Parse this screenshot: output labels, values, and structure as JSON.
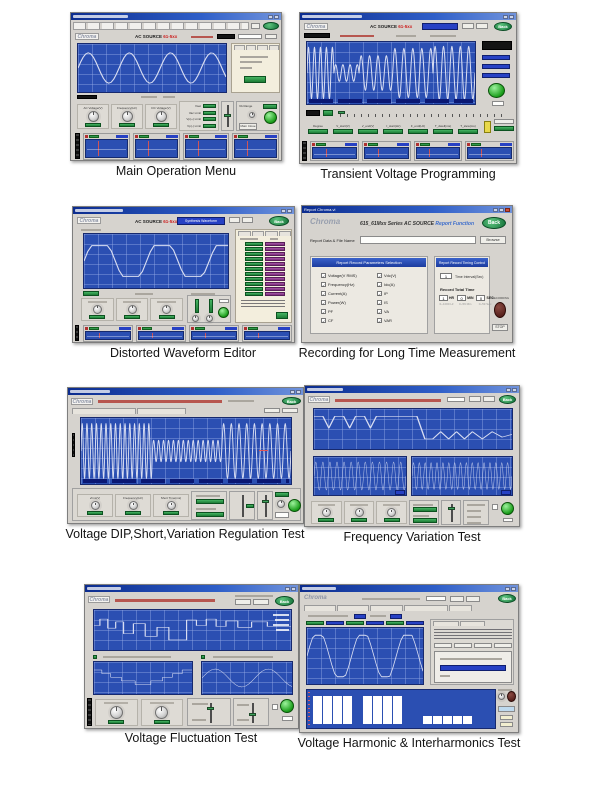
{
  "shared": {
    "logo": "Chroma",
    "back_label": "Back",
    "ac_source": "AC SOURCE",
    "model_accent": "61-5xx"
  },
  "colors": {
    "plot_blue": "#2b4fb2",
    "display_green": "#2d9a4d",
    "back_green": "#1f8a44",
    "accent_red": "#cc2020",
    "harmonic_purple": "#8e3a8e",
    "maroon_led": "#5c2020",
    "window_gray": "#d6d3ce",
    "titlebar_blue": "#0c2c8e"
  },
  "captions": {
    "p1": "Main Operation Menu",
    "p2": "Transient Voltage Programming",
    "p3": "Distorted Waveform Editor",
    "p4": "Recording for Long Time Measurement",
    "p5": "Voltage DIP,Short,Variation Regulation Test",
    "p6": "Frequency Variation Test",
    "p7": "Voltage Fluctuation Test",
    "p8": "Voltage Harmonic & Interharmonics Test"
  },
  "panels": {
    "p1": {
      "knobs": [
        "AC Voltage(V)",
        "Frequency(Hz)",
        "DC Voltage(V)"
      ],
      "meas": [
        "Vset",
        "Vac Limit",
        "Vp(+) Limit",
        "Vp(-) Limit"
      ],
      "range_label": "VA Range",
      "main_close": "Main Close"
    },
    "p2": {
      "params": [
        "Degree",
        "V_start(V)",
        "V_end(V)",
        "F_start(Hz)",
        "F_end(Hz)",
        "T_dwell(ms)",
        "T_slew(ms)"
      ]
    },
    "p3": {
      "synthesis_button": "Synthesis Waveform",
      "rows": [
        1,
        2,
        3,
        4,
        5,
        6,
        7,
        8,
        9,
        10,
        11
      ],
      "knobs": [
        "",
        "",
        ""
      ]
    },
    "p4": {
      "window_title": "Report Chroma.vi",
      "series_title": "615_61Mxx Series AC SOURCE",
      "report_function": "Report Function",
      "file_label": "Report Data & File Name",
      "browse": "Browse",
      "params_header": "Report Record Parameters Selection",
      "timing_header": "Report Record Timing Control",
      "params_left": [
        "Voltage(V RMS)",
        "Frequency(Hz)",
        "Current(A)",
        "Power(W)",
        "PF",
        "CF"
      ],
      "params_right": [
        "Vdc(V)",
        "Idc(A)",
        "IP",
        "IS",
        "VA",
        "VAR"
      ],
      "interval_value": "1",
      "interval_label": "Time Interval(Sec)",
      "total_label": "Record Total Time",
      "time_fields": [
        {
          "v": "1",
          "u": "HR",
          "h": "0~1000 Hr"
        },
        {
          "v": "0",
          "u": "MIN",
          "h": "0~59 Min"
        },
        {
          "v": "0",
          "u": "SEC",
          "h": "0~59 Sec"
        }
      ],
      "recording_label": "RECORDING",
      "stop": "STOP"
    },
    "p5": {
      "knobs": [
        "Vrms(V)",
        "Frequency(Hz)",
        "Short Time(ms)"
      ]
    },
    "p6": {
      "knobs": [
        "",
        "",
        ""
      ]
    },
    "p7": {
      "knobs": [
        "",
        ""
      ]
    },
    "p8": {
      "bars": [
        90,
        90,
        90,
        90,
        0,
        90,
        90,
        90,
        90,
        0,
        0,
        25,
        25,
        25,
        25,
        25,
        0,
        0
      ]
    }
  },
  "waves": {
    "p1_main": {
      "segs": [
        {
          "len": 1,
          "cycles": 3.6,
          "amp": 0.7
        }
      ]
    },
    "p2_main": {
      "segs": [
        {
          "len": 0.16,
          "cycles": 4.5,
          "amp": 0.92
        },
        {
          "len": 0.15,
          "cycles": 3.5,
          "amp": 0.3
        },
        {
          "len": 0.2,
          "cycles": 4,
          "amp": 0.62
        },
        {
          "len": 0.24,
          "cycles": 4.5,
          "amp": 0.88
        },
        {
          "len": 0.25,
          "cycles": 5,
          "amp": 0.95
        }
      ]
    },
    "p3_main": {
      "clamp": 0.63,
      "segs": [
        {
          "len": 1,
          "cycles": 2.3,
          "amp": 1.05
        }
      ]
    },
    "p5_main": {
      "segs": [
        {
          "len": 0.34,
          "cycles": 15,
          "amp": 0.92
        },
        {
          "len": 0.33,
          "cycles": 14,
          "amp": 0.36
        },
        {
          "len": 0.33,
          "cycles": 9,
          "amp": 0.92
        }
      ]
    },
    "p6_top": {
      "poly": [
        [
          0,
          0.7
        ],
        [
          0.045,
          0.7
        ],
        [
          0.075,
          0.05
        ],
        [
          0.105,
          0.7
        ],
        [
          0.15,
          0.7
        ],
        [
          0.18,
          0.05
        ],
        [
          0.21,
          0.7
        ],
        [
          0.255,
          0.7
        ],
        [
          0.285,
          0.05
        ],
        [
          0.315,
          0.7
        ],
        [
          0.52,
          0.7
        ],
        [
          0.56,
          -0.55
        ],
        [
          0.6,
          -0.55
        ],
        [
          0.64,
          -0.15
        ],
        [
          0.68,
          -0.55
        ],
        [
          0.72,
          -0.15
        ],
        [
          0.76,
          -0.55
        ],
        [
          0.8,
          -0.15
        ],
        [
          0.85,
          -0.55
        ],
        [
          0.9,
          -0.15
        ],
        [
          0.95,
          -0.45
        ],
        [
          1,
          -0.3
        ]
      ]
    },
    "p6_left": {
      "segs": [
        {
          "len": 1,
          "cycles": 13,
          "amp": 0.82
        }
      ]
    },
    "p6_right": {
      "segs": [
        {
          "len": 1,
          "cycles": 17,
          "amp": 0.78
        }
      ]
    },
    "p7_top": {
      "poly": [
        [
          0,
          0.25
        ],
        [
          0.03,
          0.25
        ],
        [
          0.03,
          0.6
        ],
        [
          0.07,
          0.6
        ],
        [
          0.07,
          0.1
        ],
        [
          0.11,
          0.1
        ],
        [
          0.11,
          0.45
        ],
        [
          0.15,
          0.45
        ],
        [
          0.15,
          -0.2
        ],
        [
          0.2,
          -0.2
        ],
        [
          0.2,
          0.35
        ],
        [
          0.26,
          0.35
        ],
        [
          0.26,
          -0.35
        ],
        [
          0.32,
          -0.35
        ],
        [
          0.32,
          0.15
        ],
        [
          0.38,
          0.15
        ],
        [
          0.38,
          -0.55
        ],
        [
          0.47,
          -0.55
        ],
        [
          0.47,
          0.55
        ],
        [
          0.52,
          0.55
        ],
        [
          0.52,
          0.25
        ],
        [
          0.57,
          0.25
        ],
        [
          0.57,
          0.6
        ],
        [
          0.62,
          0.6
        ],
        [
          0.62,
          0.2
        ],
        [
          0.67,
          0.2
        ],
        [
          0.67,
          0.5
        ],
        [
          0.73,
          0.5
        ],
        [
          0.73,
          0.15
        ],
        [
          0.8,
          0.15
        ],
        [
          0.8,
          0.45
        ],
        [
          0.88,
          0.45
        ],
        [
          0.88,
          0.2
        ],
        [
          1,
          0.2
        ]
      ]
    },
    "p7_left": {
      "poly": [
        [
          0,
          0.55
        ],
        [
          0.08,
          0.55
        ],
        [
          0.08,
          0.3
        ],
        [
          0.17,
          0.3
        ],
        [
          0.17,
          0.05
        ],
        [
          0.28,
          0.05
        ],
        [
          0.28,
          -0.2
        ],
        [
          0.42,
          -0.2
        ],
        [
          0.42,
          -0.45
        ],
        [
          0.58,
          -0.45
        ],
        [
          0.58,
          -0.2
        ],
        [
          0.7,
          -0.2
        ],
        [
          0.7,
          0.05
        ],
        [
          0.8,
          0.05
        ],
        [
          0.8,
          0.3
        ],
        [
          0.9,
          0.3
        ],
        [
          0.9,
          0.55
        ],
        [
          1,
          0.55
        ]
      ]
    },
    "p7_right": {
      "segs": [
        {
          "len": 1,
          "cycles": 1.7,
          "amp": 0.62
        }
      ]
    },
    "p8_main": {
      "clamp": 0.82,
      "segs": [
        {
          "len": 1,
          "cycles": 2.6,
          "amp": 1.02
        }
      ]
    }
  }
}
